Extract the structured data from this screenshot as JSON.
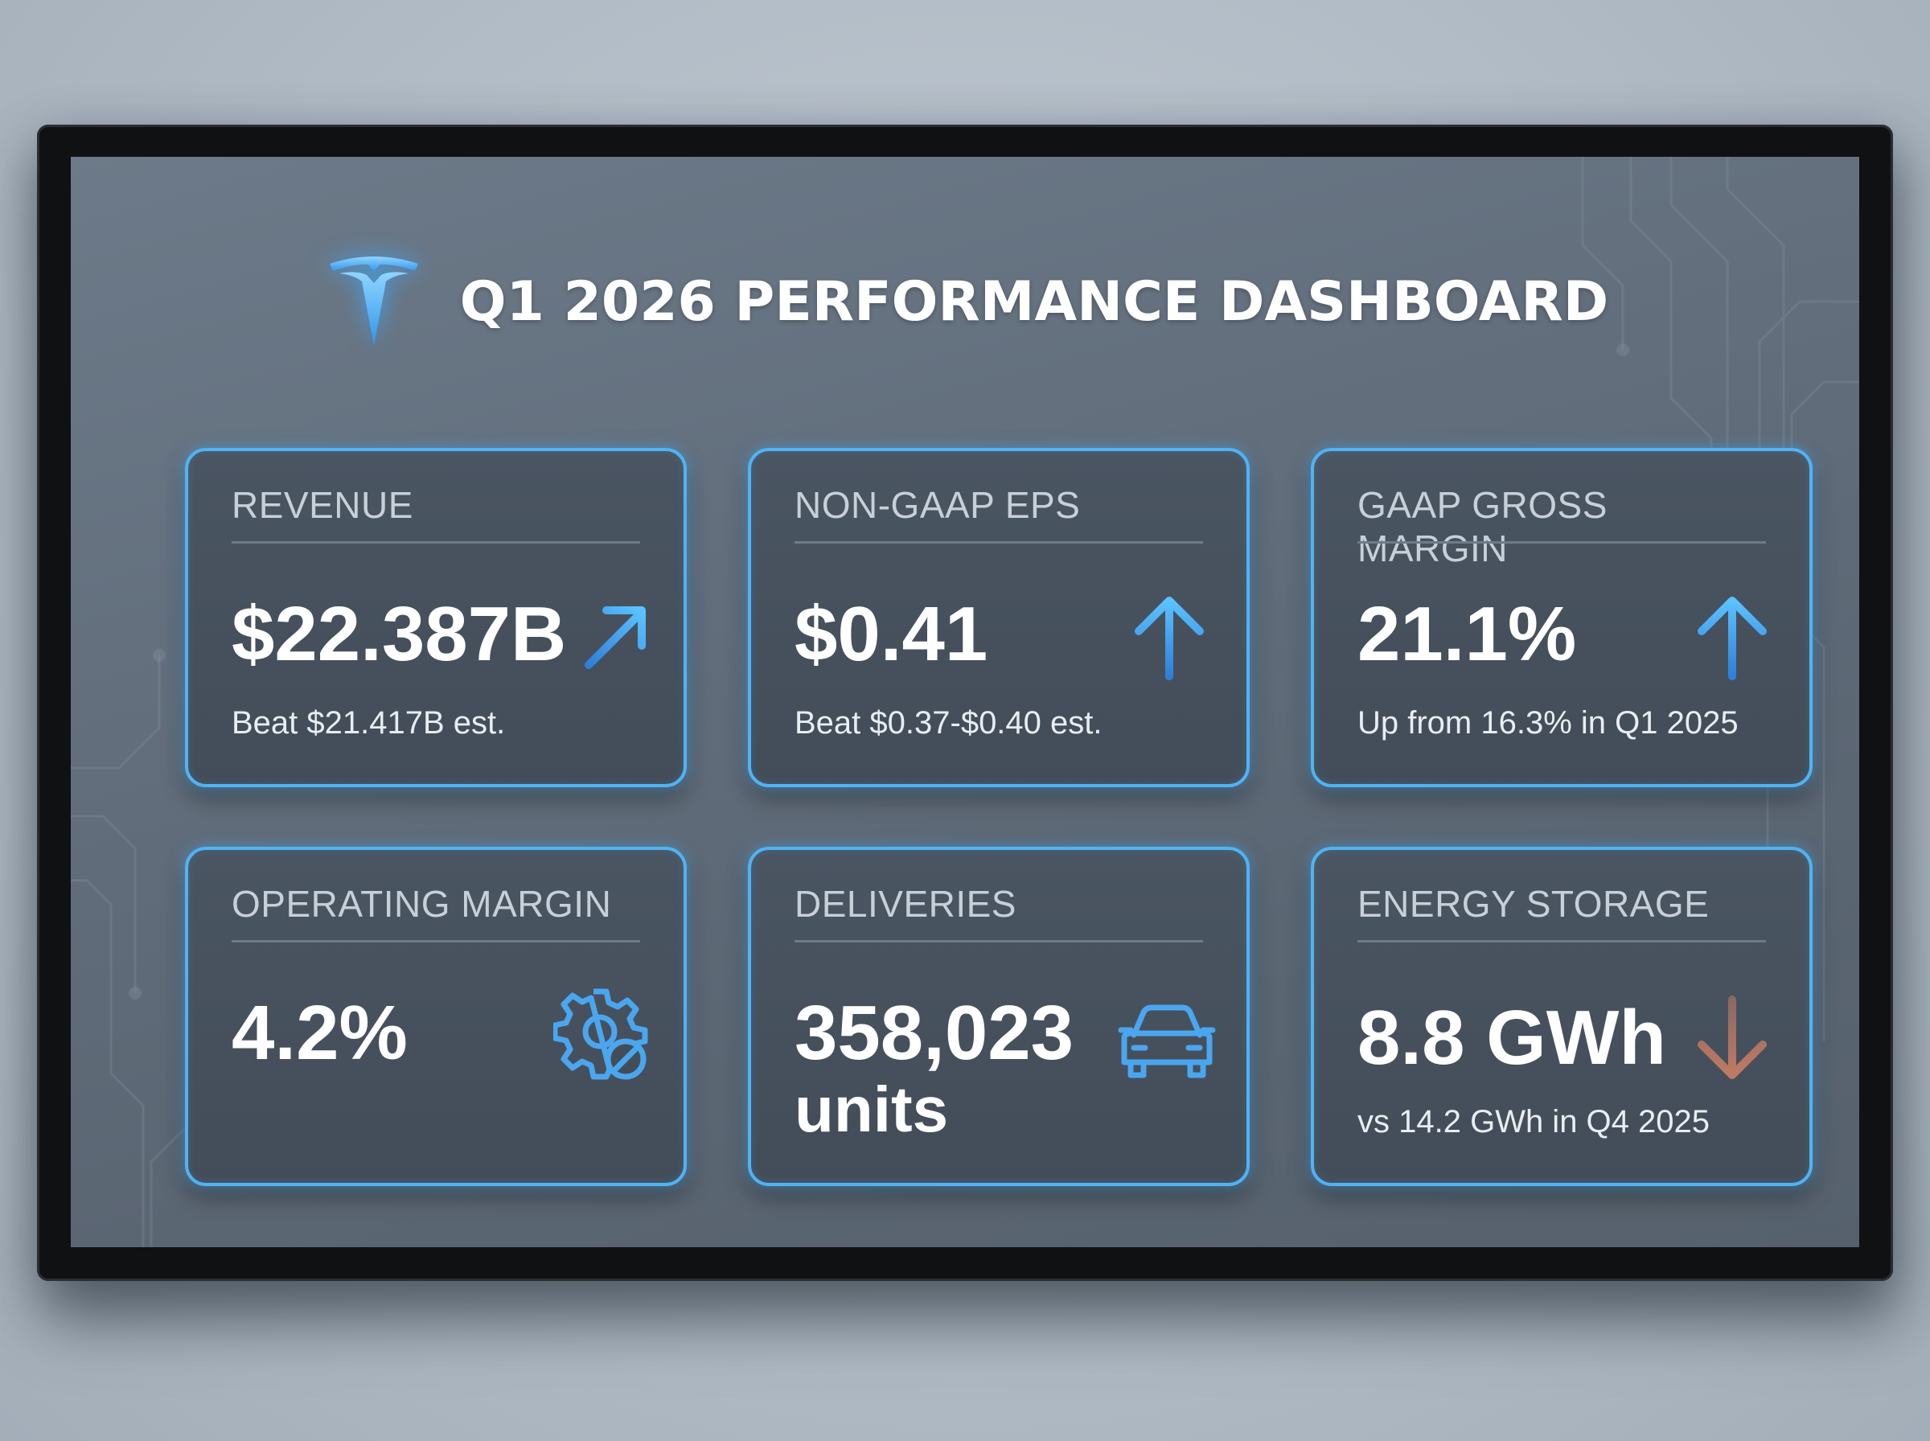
{
  "dashboard": {
    "title": "Q1 2026 PERFORMANCE DASHBOARD",
    "logo_icon": "tesla-t-logo",
    "accent_color": "#4fb3f5",
    "negative_color": "#b5735f"
  },
  "cards": [
    {
      "label": "REVENUE",
      "value": "$22.387B",
      "note": "Beat $21.417B est.",
      "icon": "arrow-up-right-icon"
    },
    {
      "label": "NON-GAAP EPS",
      "value": "$0.41",
      "note": "Beat $0.37-$0.40 est.",
      "icon": "arrow-up-icon"
    },
    {
      "label": "GAAP GROSS MARGIN",
      "value": "21.1%",
      "note": "Up from 16.3% in Q1 2025",
      "icon": "arrow-up-icon"
    },
    {
      "label": "OPERATING MARGIN",
      "value": "4.2%",
      "note": "",
      "icon": "gear-disabled-icon"
    },
    {
      "label": "DELIVERIES",
      "value": "358,023",
      "value_line2": "units",
      "note": "",
      "icon": "car-icon"
    },
    {
      "label": "ENERGY STORAGE",
      "value": "8.8 GWh",
      "note": "vs 14.2 GWh in Q4 2025",
      "icon": "arrow-down-icon"
    }
  ]
}
